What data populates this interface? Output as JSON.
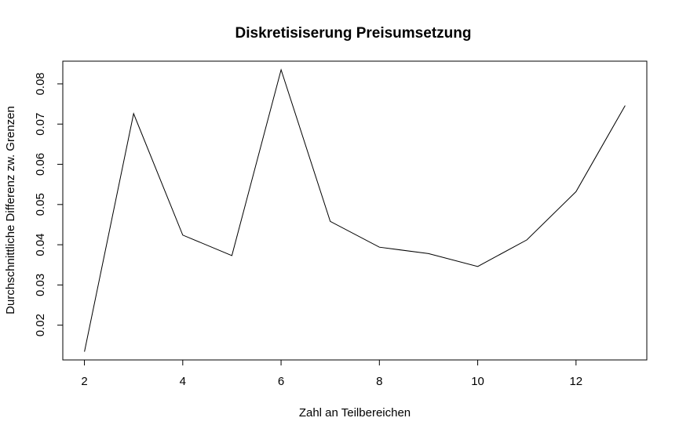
{
  "chart_data": {
    "type": "line",
    "title": "Diskretisiserung Preisumsetzung",
    "xlabel": "Zahl an Teilbereichen",
    "ylabel": "Durchschnittliche Differenz zw. Grenzen",
    "x": [
      2,
      3,
      4,
      5,
      6,
      7,
      8,
      9,
      10,
      11,
      12,
      13
    ],
    "series": [
      {
        "values": [
          0.0134,
          0.0726,
          0.0424,
          0.0373,
          0.0835,
          0.0458,
          0.0394,
          0.0378,
          0.0346,
          0.0412,
          0.0532,
          0.0746
        ]
      }
    ],
    "xticks": [
      2,
      4,
      6,
      8,
      10,
      12
    ],
    "xtick_labels": [
      "2",
      "4",
      "6",
      "8",
      "10",
      "12"
    ],
    "yticks": [
      0.02,
      0.03,
      0.04,
      0.05,
      0.06,
      0.07,
      0.08
    ],
    "ytick_labels": [
      "0.02",
      "0.03",
      "0.04",
      "0.05",
      "0.06",
      "0.07",
      "0.08"
    ],
    "xlim": [
      1.56,
      13.44
    ],
    "ylim": [
      0.011356,
      0.085644
    ],
    "grid": false,
    "line_color": "#000000"
  }
}
